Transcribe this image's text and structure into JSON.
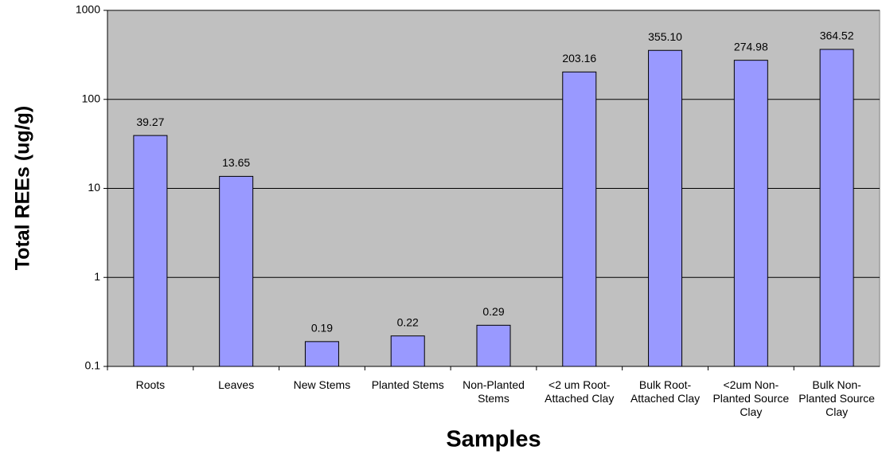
{
  "chart_data": {
    "type": "bar",
    "ylabel": "Total REEs (ug/g)",
    "xlabel": "Samples",
    "categories": [
      "Roots",
      "Leaves",
      "New Stems",
      "Planted Stems",
      "Non-Planted Stems",
      "<2 um Root-Attached Clay",
      "Bulk Root-Attached Clay",
      "<2um Non-Planted Source Clay",
      "Bulk Non-Planted Source Clay"
    ],
    "values": [
      39.27,
      13.65,
      0.19,
      0.22,
      0.29,
      203.16,
      355.1,
      274.98,
      364.52
    ],
    "value_labels": [
      "39.27",
      "13.65",
      "0.19",
      "0.22",
      "0.29",
      "203.16",
      "355.10",
      "274.98",
      "364.52"
    ],
    "color": "#9999ff",
    "log_scale": true,
    "grid": true,
    "ylim": [
      0.1,
      1000
    ],
    "yticks": [
      0.1,
      1,
      10,
      100,
      1000
    ]
  }
}
